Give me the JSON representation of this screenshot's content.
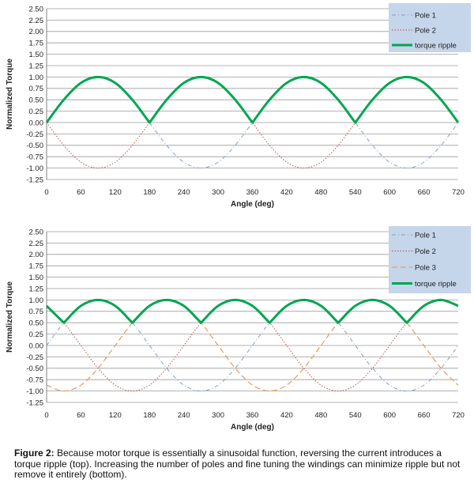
{
  "chart_data": [
    {
      "type": "line",
      "xlabel": "Angle (deg)",
      "ylabel": "Normalized Torque",
      "xlim": [
        0,
        720
      ],
      "ylim": [
        -1.25,
        2.5
      ],
      "xticks": [
        0,
        60,
        120,
        180,
        240,
        300,
        360,
        420,
        480,
        540,
        600,
        660,
        720
      ],
      "yticks": [
        "2.50",
        "2.25",
        "2.00",
        "1.75",
        "1.50",
        "1.25",
        "1.00",
        "0.75",
        "0.50",
        "0.25",
        "0.00",
        "-0.25",
        "-0.50",
        "-0.75",
        "-1.00",
        "-1.25"
      ],
      "grid": "horizontal",
      "legend_position": "top-right",
      "x": [
        0,
        30,
        60,
        90,
        120,
        150,
        180,
        210,
        240,
        270,
        300,
        330,
        360,
        390,
        420,
        450,
        480,
        510,
        540,
        570,
        600,
        630,
        660,
        690,
        720
      ],
      "series": [
        {
          "name": "Pole 1",
          "color": "#7f9fc8",
          "style": "dash-dot",
          "values": [
            0,
            0.5,
            0.87,
            1,
            0.87,
            0.5,
            0,
            -0.5,
            -0.87,
            -1,
            -0.87,
            -0.5,
            0,
            0.5,
            0.87,
            1,
            0.87,
            0.5,
            0,
            -0.5,
            -0.87,
            -1,
            -0.87,
            -0.5,
            0
          ]
        },
        {
          "name": "Pole 2",
          "color": "#c0504d",
          "style": "dotted",
          "values": [
            0,
            -0.5,
            -0.87,
            -1,
            -0.87,
            -0.5,
            0,
            0.5,
            0.87,
            1,
            0.87,
            0.5,
            0,
            -0.5,
            -0.87,
            -1,
            -0.87,
            -0.5,
            0,
            0.5,
            0.87,
            1,
            0.87,
            0.5,
            0
          ]
        },
        {
          "name": "torque ripple",
          "color": "#00a651",
          "style": "solid-thick",
          "values": [
            0,
            0.5,
            0.87,
            1,
            0.87,
            0.5,
            0,
            0.5,
            0.87,
            1,
            0.87,
            0.5,
            0,
            0.5,
            0.87,
            1,
            0.87,
            0.5,
            0,
            0.5,
            0.87,
            1,
            0.87,
            0.5,
            0
          ]
        }
      ]
    },
    {
      "type": "line",
      "xlabel": "Angle (deg)",
      "ylabel": "Normalized Torque",
      "xlim": [
        0,
        720
      ],
      "ylim": [
        -1.25,
        2.5
      ],
      "xticks": [
        0,
        60,
        120,
        180,
        240,
        300,
        360,
        420,
        480,
        540,
        600,
        660,
        720
      ],
      "yticks": [
        "2.50",
        "2.25",
        "2.00",
        "1.75",
        "1.50",
        "1.25",
        "1.00",
        "0.75",
        "0.50",
        "0.25",
        "0.00",
        "-0.25",
        "-0.50",
        "-0.75",
        "-1.00",
        "-1.25"
      ],
      "grid": "horizontal",
      "legend_position": "top-right",
      "x": [
        0,
        30,
        60,
        90,
        120,
        150,
        180,
        210,
        240,
        270,
        300,
        330,
        360,
        390,
        420,
        450,
        480,
        510,
        540,
        570,
        600,
        630,
        660,
        690,
        720
      ],
      "series": [
        {
          "name": "Pole 1",
          "color": "#7f9fc8",
          "style": "dash-dot",
          "values": [
            0,
            0.5,
            0.87,
            1,
            0.87,
            0.5,
            0,
            -0.5,
            -0.87,
            -1,
            -0.87,
            -0.5,
            0,
            0.5,
            0.87,
            1,
            0.87,
            0.5,
            0,
            -0.5,
            -0.87,
            -1,
            -0.87,
            -0.5,
            0
          ]
        },
        {
          "name": "Pole 2",
          "color": "#c0504d",
          "style": "dotted",
          "values": [
            0.87,
            0.5,
            0,
            -0.5,
            -0.87,
            -1,
            -0.87,
            -0.5,
            0,
            0.5,
            0.87,
            1,
            0.87,
            0.5,
            0,
            -0.5,
            -0.87,
            -1,
            -0.87,
            -0.5,
            0,
            0.5,
            0.87,
            1,
            0.87
          ]
        },
        {
          "name": "Pole 3",
          "color": "#e8a060",
          "style": "dashed",
          "values": [
            -0.87,
            -1,
            -0.87,
            -0.5,
            0,
            0.5,
            0.87,
            1,
            0.87,
            0.5,
            0,
            -0.5,
            -0.87,
            -1,
            -0.87,
            -0.5,
            0,
            0.5,
            0.87,
            1,
            0.87,
            0.5,
            0,
            -0.5,
            -0.87
          ]
        },
        {
          "name": "torque ripple",
          "color": "#00a651",
          "style": "solid-thick",
          "values": [
            0.87,
            0.5,
            0.87,
            1,
            0.87,
            0.5,
            0.87,
            1,
            0.87,
            0.5,
            0.87,
            1,
            0.87,
            0.5,
            0.87,
            1,
            0.87,
            0.5,
            0.87,
            1,
            0.87,
            0.5,
            0.87,
            1,
            0.87
          ]
        }
      ]
    }
  ],
  "caption": {
    "label": "Figure 2:",
    "text": " Because motor torque is essentially a sinusoidal function, reversing the current introduces a torque ripple (top). Increasing the number of poles and fine tuning the windings can minimize ripple but not remove it entirely (bottom)."
  }
}
